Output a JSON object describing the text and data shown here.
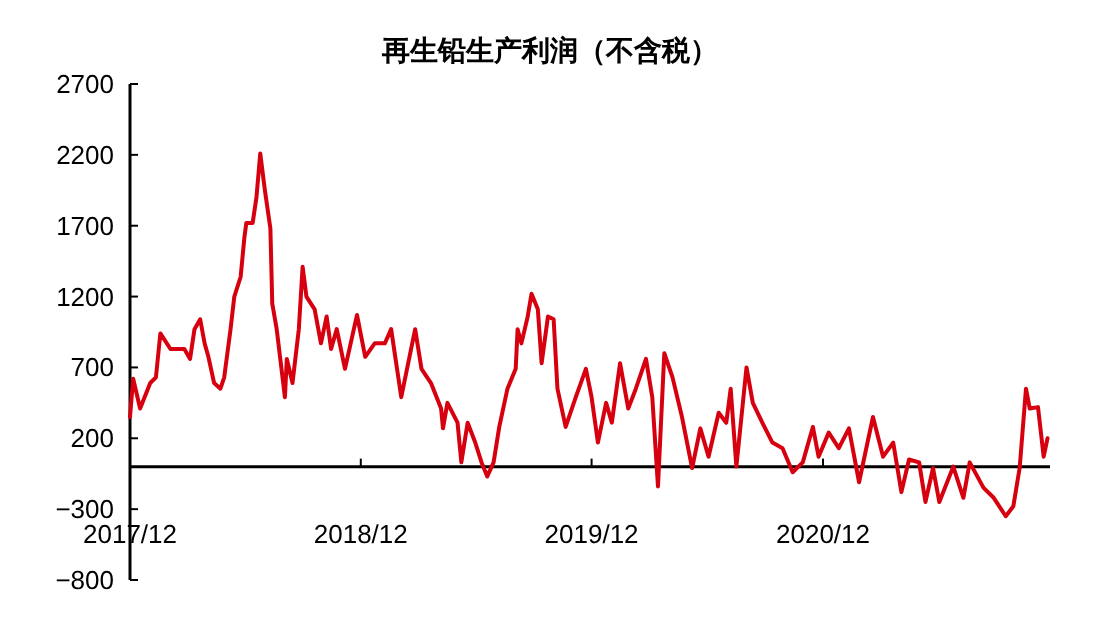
{
  "chart_data": {
    "type": "line",
    "title": "再生铅生产利润（不含税）",
    "x": [
      "2017-12-01",
      "2017-12-06",
      "2017-12-17",
      "2018-01-02",
      "2018-01-11",
      "2018-01-18",
      "2018-02-03",
      "2018-02-25",
      "2018-03-06",
      "2018-03-13",
      "2018-03-22",
      "2018-03-29",
      "2018-04-04",
      "2018-04-13",
      "2018-04-23",
      "2018-04-29",
      "2018-05-09",
      "2018-05-15",
      "2018-05-25",
      "2018-05-31",
      "2018-06-03",
      "2018-06-13",
      "2018-06-19",
      "2018-06-25",
      "2018-07-02",
      "2018-07-11",
      "2018-07-14",
      "2018-07-21",
      "2018-08-03",
      "2018-08-06",
      "2018-08-15",
      "2018-08-25",
      "2018-08-31",
      "2018-09-06",
      "2018-09-19",
      "2018-09-29",
      "2018-10-08",
      "2018-10-15",
      "2018-10-24",
      "2018-11-06",
      "2018-11-15",
      "2018-11-25",
      "2018-12-08",
      "2018-12-23",
      "2019-01-08",
      "2019-01-18",
      "2019-02-03",
      "2019-02-25",
      "2019-03-07",
      "2019-03-22",
      "2019-04-07",
      "2019-04-10",
      "2019-04-17",
      "2019-05-03",
      "2019-05-09",
      "2019-05-19",
      "2019-05-31",
      "2019-06-10",
      "2019-06-19",
      "2019-06-29",
      "2019-07-08",
      "2019-07-21",
      "2019-08-03",
      "2019-08-06",
      "2019-08-12",
      "2019-08-22",
      "2019-08-28",
      "2019-09-07",
      "2019-09-13",
      "2019-09-23",
      "2019-10-02",
      "2019-10-08",
      "2019-10-21",
      "2019-11-06",
      "2019-11-22",
      "2019-12-01",
      "2019-12-11",
      "2019-12-24",
      "2020-01-02",
      "2020-01-15",
      "2020-01-28",
      "2020-02-09",
      "2020-02-25",
      "2020-03-06",
      "2020-03-15",
      "2020-03-25",
      "2020-04-07",
      "2020-04-22",
      "2020-05-08",
      "2020-05-21",
      "2020-06-03",
      "2020-06-19",
      "2020-07-01",
      "2020-07-08",
      "2020-07-17",
      "2020-08-02",
      "2020-08-12",
      "2020-08-27",
      "2020-09-12",
      "2020-09-28",
      "2020-10-14",
      "2020-10-30",
      "2020-11-15",
      "2020-11-24",
      "2020-12-10",
      "2020-12-26",
      "2021-01-11",
      "2021-01-27",
      "2021-02-18",
      "2021-03-06",
      "2021-03-22",
      "2021-04-04",
      "2021-04-16",
      "2021-05-02",
      "2021-05-12",
      "2021-05-24",
      "2021-06-03",
      "2021-06-25",
      "2021-07-11",
      "2021-07-21",
      "2021-08-12",
      "2021-08-28",
      "2021-09-16",
      "2021-09-28",
      "2021-10-08",
      "2021-10-18",
      "2021-10-24",
      "2021-11-06",
      "2021-11-15",
      "2021-11-21"
    ],
    "series": [
      {
        "color": "#d7000f",
        "values": [
          350,
          620,
          410,
          590,
          630,
          940,
          830,
          830,
          760,
          970,
          1040,
          870,
          775,
          590,
          550,
          630,
          970,
          1200,
          1340,
          1620,
          1720,
          1720,
          1900,
          2210,
          1960,
          1680,
          1150,
          970,
          490,
          760,
          590,
          970,
          1410,
          1200,
          1110,
          870,
          1060,
          830,
          970,
          690,
          870,
          1070,
          775,
          870,
          870,
          970,
          490,
          970,
          690,
          590,
          410,
          270,
          450,
          310,
          30,
          310,
          170,
          30,
          -70,
          30,
          280,
          550,
          690,
          970,
          870,
          1060,
          1220,
          1110,
          730,
          1060,
          1040,
          550,
          280,
          490,
          690,
          490,
          170,
          450,
          310,
          730,
          410,
          550,
          760,
          490,
          -140,
          800,
          630,
          350,
          -10,
          270,
          70,
          380,
          310,
          550,
          0,
          700,
          450,
          310,
          170,
          130,
          -40,
          30,
          280,
          70,
          240,
          130,
          270,
          -110,
          350,
          70,
          170,
          -180,
          50,
          30,
          -250,
          -10,
          -250,
          0,
          -220,
          30,
          -150,
          -220,
          -350,
          -280,
          -10,
          550,
          410,
          420,
          70,
          200
        ]
      }
    ],
    "xlim": [
      "2017-12-01",
      "2021-11-25"
    ],
    "xticks": [
      {
        "value": "2017-12-01",
        "label": "2017/12"
      },
      {
        "value": "2018-12-01",
        "label": "2018/12"
      },
      {
        "value": "2019-12-01",
        "label": "2019/12"
      },
      {
        "value": "2020-12-01",
        "label": "2020/12"
      }
    ],
    "ylim": [
      -800,
      2700
    ],
    "yticks": [
      -800,
      -300,
      200,
      700,
      1200,
      1700,
      2200,
      2700
    ],
    "grid": false,
    "line_style": "solid",
    "marker": "none"
  }
}
